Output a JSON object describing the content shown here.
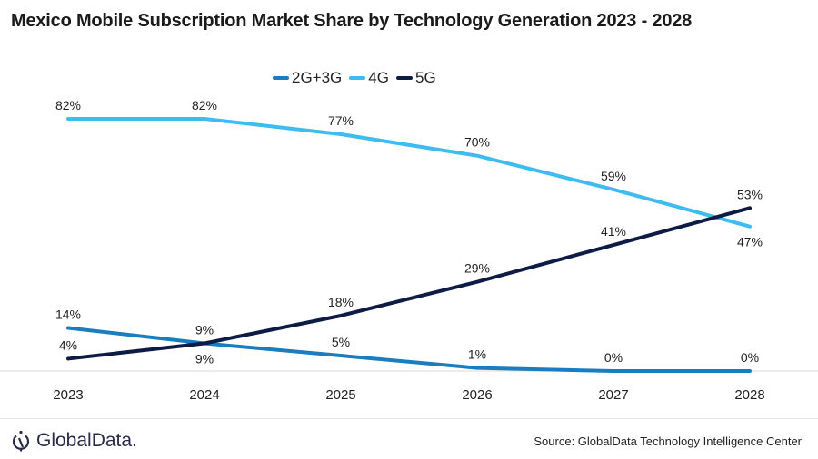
{
  "title": "Mexico Mobile Subscription Market Share by Technology Generation 2023 - 2028",
  "legend": [
    {
      "label": "2G+3G",
      "color": "#1a7dc0"
    },
    {
      "label": "4G",
      "color": "#3ebcf2"
    },
    {
      "label": "5G",
      "color": "#0d1b45"
    }
  ],
  "footer": {
    "logo_text": "GlobalData.",
    "source": "Source: GlobalData Technology Intelligence Center"
  },
  "chart_data": {
    "type": "line",
    "title": "Mexico Mobile Subscription Market Share by Technology Generation 2023 - 2028",
    "xlabel": "",
    "ylabel": "",
    "categories": [
      "2023",
      "2024",
      "2025",
      "2026",
      "2027",
      "2028"
    ],
    "ylim": [
      0,
      85
    ],
    "grid": false,
    "legend_position": "top-center",
    "value_format": "percent",
    "series": [
      {
        "name": "2G+3G",
        "color": "#1a7dc0",
        "values": [
          14,
          9,
          5,
          1,
          0,
          0
        ],
        "label_pos": [
          "above",
          "below",
          "above",
          "above",
          "above",
          "above"
        ]
      },
      {
        "name": "4G",
        "color": "#3ebcf2",
        "values": [
          82,
          82,
          77,
          70,
          59,
          47
        ],
        "label_pos": [
          "above",
          "above",
          "above",
          "above",
          "above",
          "below"
        ]
      },
      {
        "name": "5G",
        "color": "#0d1b45",
        "values": [
          4,
          9,
          18,
          29,
          41,
          53
        ],
        "label_pos": [
          "above",
          "above",
          "above",
          "above",
          "above",
          "above"
        ]
      }
    ]
  }
}
